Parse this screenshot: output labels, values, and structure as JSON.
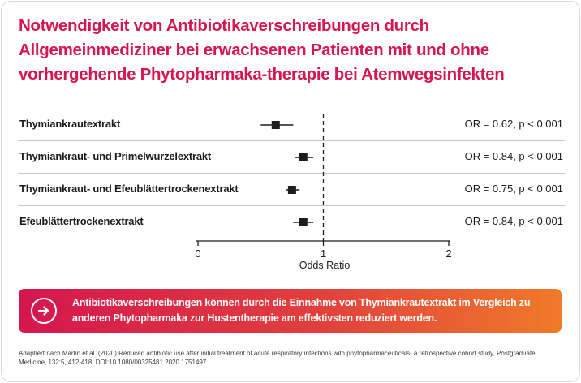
{
  "title": "Notwendigkeit von Antibiotikaverschreibungen durch Allgemeinmediziner bei erwachsenen Patienten mit und ohne vorhergehende Phytopharmaka-therapie bei Atemwegsinfekten",
  "chart_data": {
    "type": "forest",
    "title": "Notwendigkeit von Antibiotikaverschreibungen durch Allgemeinmediziner bei erwachsenen Patienten mit und ohne vorhergehende Phytopharmaka-therapie bei Atemwegsinfekten",
    "xlabel": "Odds Ratio",
    "xlim": [
      0,
      2
    ],
    "xticks": [
      "0",
      "1",
      "2"
    ],
    "reference_line": 1,
    "rows": [
      {
        "label": "Thymiankrautextrakt",
        "or": 0.62,
        "ci": [
          0.5,
          0.76
        ],
        "annotation": "OR = 0.62, p < 0.001"
      },
      {
        "label": "Thymiankraut- und Primelwurzelextrakt",
        "or": 0.84,
        "ci": [
          0.77,
          0.92
        ],
        "annotation": "OR = 0.84, p < 0.001"
      },
      {
        "label": "Thymiankraut- und Efeublättertrockenextrakt",
        "or": 0.75,
        "ci": [
          0.7,
          0.81
        ],
        "annotation": "OR = 0.75, p < 0.001"
      },
      {
        "label": "Efeublättertrockenextrakt",
        "or": 0.84,
        "ci": [
          0.76,
          0.92
        ],
        "annotation": "OR = 0.84, p < 0.001"
      }
    ]
  },
  "colors": {
    "accent": "#d5164f",
    "gradient_end": "#f07a2a",
    "marker": "#1d1d1b"
  },
  "banner": {
    "icon": "arrow-right-circle-icon",
    "text": "Antibiotikaverschreibungen können durch die Einnahme von Thymiankrautextrakt im Vergleich zu anderen Phytopharmaka zur Hustentherapie am effektivsten reduziert werden."
  },
  "footnote": "Adaptiert nach Martin et al. (2020) Reduced antibiotic use after initial treatment of acute respiratory infections with phytopharmaceuticals- a retrospective cohort study, Postgraduate Medicine, 132:5, 412-418, DOI:10.1080/00325481.2020.1751497"
}
